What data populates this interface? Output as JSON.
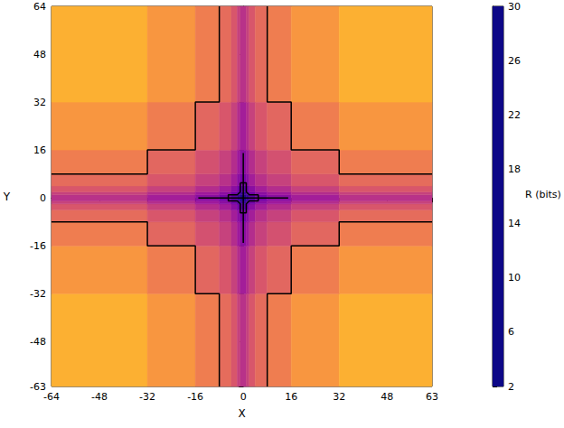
{
  "chart_data": {
    "type": "heatmap",
    "x_label": "X",
    "y_label": "Y",
    "xlim": [
      -64,
      63
    ],
    "ylim": [
      -63,
      64
    ],
    "xticks": [
      -64,
      -48,
      -32,
      -16,
      0,
      16,
      32,
      48,
      63
    ],
    "yticks": [
      -63,
      -48,
      -32,
      -16,
      0,
      16,
      32,
      48,
      64
    ],
    "x_edges": [
      -64,
      -32,
      -16,
      -8,
      -4,
      -2,
      -1,
      1,
      2,
      4,
      8,
      16,
      32,
      63
    ],
    "y_edges": [
      -63,
      -32,
      -16,
      -8,
      -4,
      -2,
      -1,
      1,
      2,
      4,
      8,
      16,
      32,
      64
    ],
    "cells": [
      [
        25,
        23,
        21,
        19.5,
        17.5,
        15.5,
        14,
        15.5,
        17.5,
        19.5,
        21,
        23,
        25
      ],
      [
        23,
        21,
        19,
        17.5,
        15.5,
        13.5,
        12,
        13.5,
        15.5,
        17.5,
        19,
        21,
        23
      ],
      [
        21,
        19,
        17,
        15.5,
        13.5,
        11.5,
        10,
        11.5,
        13.5,
        15.5,
        17,
        19,
        21
      ],
      [
        19.5,
        17.5,
        15.5,
        14,
        12,
        10,
        8.5,
        10,
        12,
        14,
        15.5,
        17.5,
        19.5
      ],
      [
        17.5,
        15.5,
        13.5,
        12,
        10,
        8,
        6.5,
        8,
        10,
        12,
        13.5,
        15.5,
        17.5
      ],
      [
        15.5,
        13.5,
        11.5,
        10,
        8,
        6,
        4.5,
        6,
        8,
        10,
        11.5,
        13.5,
        15.5
      ],
      [
        14,
        12,
        10,
        8.5,
        6.5,
        4.5,
        3,
        4.5,
        6.5,
        8.5,
        10,
        12,
        14
      ],
      [
        15.5,
        13.5,
        11.5,
        10,
        8,
        6,
        4.5,
        6,
        8,
        10,
        11.5,
        13.5,
        15.5
      ],
      [
        17.5,
        15.5,
        13.5,
        12,
        10,
        8,
        6.5,
        8,
        10,
        12,
        13.5,
        15.5,
        17.5
      ],
      [
        19.5,
        17.5,
        15.5,
        14,
        12,
        10,
        8.5,
        10,
        12,
        14,
        15.5,
        17.5,
        19.5
      ],
      [
        21,
        19,
        17,
        15.5,
        13.5,
        11.5,
        10,
        11.5,
        13.5,
        15.5,
        17,
        19,
        21
      ],
      [
        23,
        21,
        19,
        17.5,
        15.5,
        13.5,
        12,
        13.5,
        15.5,
        17.5,
        19,
        21,
        23
      ],
      [
        25,
        23,
        21,
        19.5,
        17.5,
        15.5,
        14,
        15.5,
        17.5,
        19.5,
        21,
        23,
        25
      ]
    ],
    "colorbar": {
      "label": "R (bits)",
      "range": [
        2,
        30
      ],
      "ticks": [
        2,
        6,
        10,
        14,
        18,
        22,
        26,
        30
      ]
    },
    "contours": [
      [
        [
          8,
          64
        ],
        [
          8,
          32
        ],
        [
          16,
          32
        ],
        [
          16,
          16
        ],
        [
          32,
          16
        ],
        [
          32,
          8
        ],
        [
          63,
          8
        ]
      ],
      [
        [
          -8,
          64
        ],
        [
          -8,
          32
        ],
        [
          -16,
          32
        ],
        [
          -16,
          16
        ],
        [
          -32,
          16
        ],
        [
          -32,
          8
        ],
        [
          -64,
          8
        ]
      ],
      [
        [
          8,
          -63
        ],
        [
          8,
          -32
        ],
        [
          16,
          -32
        ],
        [
          16,
          -16
        ],
        [
          32,
          -16
        ],
        [
          32,
          -8
        ],
        [
          63,
          -8
        ]
      ],
      [
        [
          -8,
          -63
        ],
        [
          -8,
          -32
        ],
        [
          -16,
          -32
        ],
        [
          -16,
          -16
        ],
        [
          -32,
          -16
        ],
        [
          -32,
          -8
        ],
        [
          -64,
          -8
        ]
      ],
      [
        [
          -15,
          0
        ],
        [
          15,
          0
        ]
      ],
      [
        [
          0,
          -15
        ],
        [
          0,
          15
        ]
      ],
      [
        [
          -1,
          5
        ],
        [
          1,
          5
        ],
        [
          1,
          2
        ],
        [
          2,
          1
        ],
        [
          5,
          1
        ],
        [
          5,
          -1
        ],
        [
          2,
          -1
        ],
        [
          1,
          -2
        ],
        [
          1,
          -5
        ],
        [
          -1,
          -5
        ],
        [
          -1,
          -2
        ],
        [
          -2,
          -1
        ],
        [
          -5,
          -1
        ],
        [
          -5,
          1
        ],
        [
          -2,
          1
        ],
        [
          -1,
          2
        ],
        [
          -1,
          5
        ]
      ]
    ]
  }
}
